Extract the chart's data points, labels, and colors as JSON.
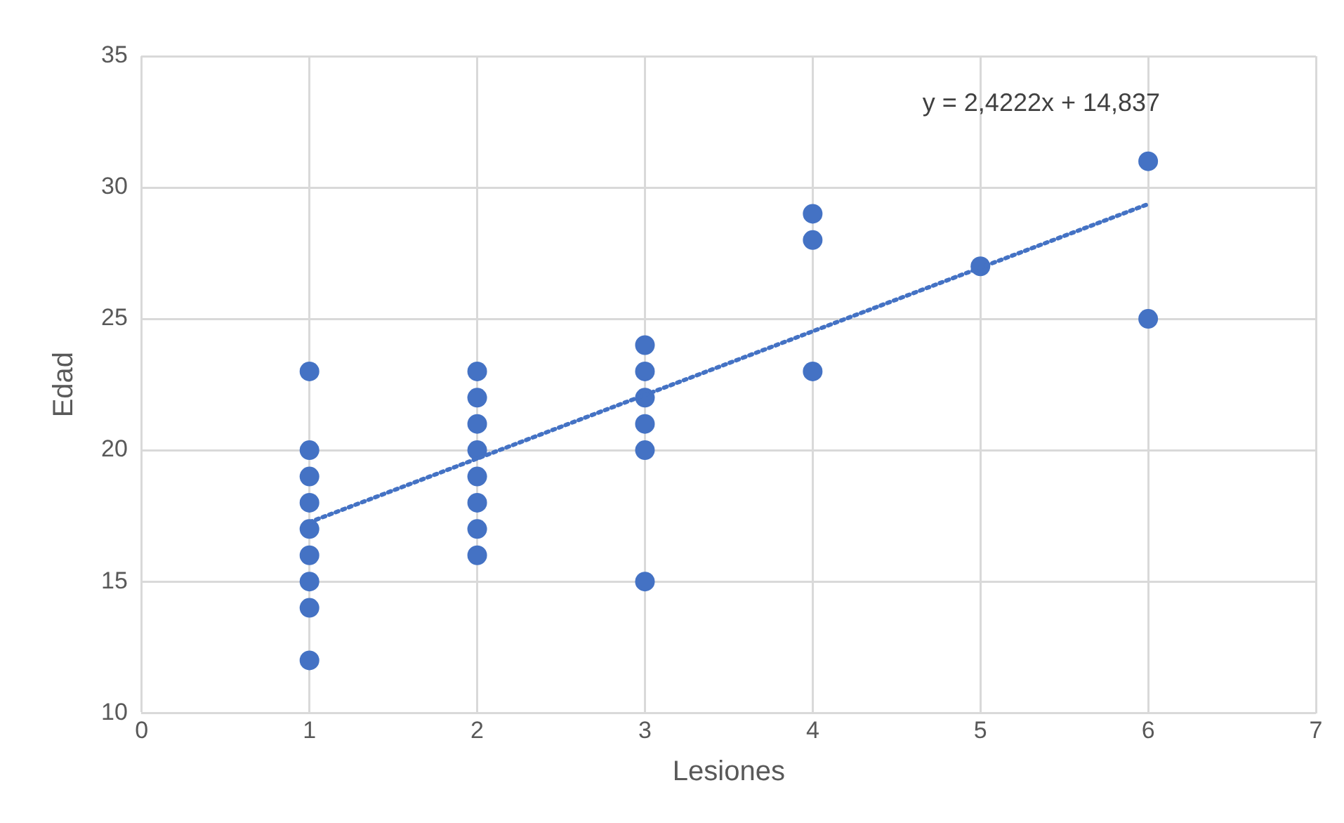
{
  "chart_data": {
    "type": "scatter",
    "xlabel": "Lesiones",
    "ylabel": "Edad",
    "annotations": [
      "y = 2,4222x + 14,837"
    ],
    "xlim": [
      0,
      7
    ],
    "xticks": [
      0,
      1,
      2,
      3,
      4,
      5,
      6,
      7
    ],
    "ylim": [
      10,
      35
    ],
    "yticks": [
      10,
      15,
      20,
      25,
      30,
      35
    ],
    "grid": true,
    "legend": false,
    "marker": "circle",
    "series": [
      {
        "color": "#4472c4",
        "x": [
          1,
          1,
          1,
          1,
          1,
          1,
          1,
          1,
          1,
          2,
          2,
          2,
          2,
          2,
          2,
          2,
          2,
          3,
          3,
          3,
          3,
          3,
          3,
          4,
          4,
          4,
          5,
          6,
          6
        ],
        "values": [
          23,
          20,
          19,
          18,
          17,
          16,
          15,
          14,
          12,
          23,
          22,
          21,
          20,
          19,
          18,
          17,
          16,
          24,
          23,
          22,
          21,
          20,
          15,
          29,
          28,
          23,
          27,
          31,
          25
        ]
      },
      {
        "type": "line",
        "color": "#4472c4",
        "line_style": "dotted",
        "marker": "none",
        "x": [
          1,
          6
        ],
        "values": [
          17.26,
          29.37
        ]
      }
    ]
  }
}
